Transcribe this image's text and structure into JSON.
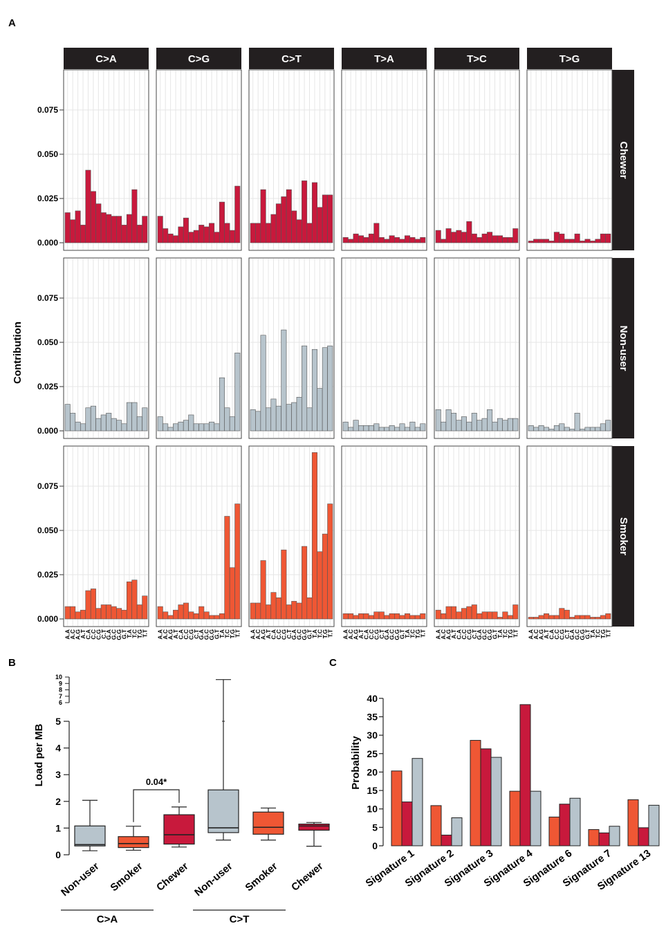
{
  "panel_labels": {
    "a": "A",
    "b": "B",
    "c": "C"
  },
  "colors": {
    "chewer": "#c8193c",
    "nonuser": "#b7c4cc",
    "smoker": "#ef5734",
    "strip": "#231f20",
    "grid": "#e6e6e6"
  },
  "chart_data": [
    {
      "id": "A",
      "type": "bar",
      "title": "",
      "ylabel": "Contribution",
      "ylim": [
        0,
        0.1
      ],
      "yticks": [
        "0.000",
        "0.025",
        "0.050",
        "0.075"
      ],
      "mutation_types": [
        "C>A",
        "C>G",
        "C>T",
        "T>A",
        "T>C",
        "T>G"
      ],
      "contexts": [
        "A.A",
        "A.C",
        "A.G",
        "A.T",
        "C.A",
        "C.C",
        "C.G",
        "C.T",
        "G.A",
        "G.C",
        "G.G",
        "G.T",
        "T.A",
        "T.C",
        "T.G",
        "T.T"
      ],
      "series": [
        {
          "name": "Chewer",
          "color": "#c8193c",
          "values": [
            [
              0.017,
              0.013,
              0.018,
              0.01,
              0.041,
              0.029,
              0.022,
              0.017,
              0.016,
              0.015,
              0.015,
              0.01,
              0.016,
              0.03,
              0.01,
              0.015
            ],
            [
              0.015,
              0.008,
              0.005,
              0.004,
              0.009,
              0.014,
              0.006,
              0.007,
              0.01,
              0.009,
              0.011,
              0.006,
              0.023,
              0.011,
              0.007,
              0.032
            ],
            [
              0.011,
              0.011,
              0.03,
              0.011,
              0.016,
              0.022,
              0.026,
              0.03,
              0.018,
              0.013,
              0.035,
              0.011,
              0.034,
              0.02,
              0.027,
              0.027
            ],
            [
              0.003,
              0.002,
              0.005,
              0.004,
              0.003,
              0.005,
              0.011,
              0.003,
              0.002,
              0.004,
              0.003,
              0.002,
              0.004,
              0.003,
              0.002,
              0.003
            ],
            [
              0.007,
              0.002,
              0.008,
              0.006,
              0.007,
              0.006,
              0.012,
              0.005,
              0.003,
              0.005,
              0.006,
              0.004,
              0.004,
              0.003,
              0.003,
              0.008
            ],
            [
              0.001,
              0.002,
              0.002,
              0.002,
              0.001,
              0.006,
              0.005,
              0.002,
              0.002,
              0.005,
              0.001,
              0.002,
              0.001,
              0.002,
              0.005,
              0.005
            ]
          ]
        },
        {
          "name": "Non-user",
          "color": "#b7c4cc",
          "values": [
            [
              0.015,
              0.01,
              0.005,
              0.004,
              0.013,
              0.014,
              0.007,
              0.009,
              0.01,
              0.007,
              0.006,
              0.004,
              0.016,
              0.016,
              0.008,
              0.013
            ],
            [
              0.008,
              0.004,
              0.002,
              0.004,
              0.005,
              0.006,
              0.009,
              0.004,
              0.004,
              0.004,
              0.005,
              0.004,
              0.03,
              0.013,
              0.008,
              0.044
            ],
            [
              0.012,
              0.011,
              0.054,
              0.013,
              0.018,
              0.014,
              0.057,
              0.015,
              0.016,
              0.019,
              0.048,
              0.013,
              0.046,
              0.024,
              0.047,
              0.048
            ],
            [
              0.005,
              0.002,
              0.006,
              0.003,
              0.003,
              0.003,
              0.004,
              0.002,
              0.002,
              0.003,
              0.002,
              0.004,
              0.002,
              0.005,
              0.002,
              0.004
            ],
            [
              0.012,
              0.005,
              0.012,
              0.01,
              0.006,
              0.008,
              0.005,
              0.01,
              0.006,
              0.007,
              0.012,
              0.005,
              0.007,
              0.006,
              0.007,
              0.007
            ],
            [
              0.003,
              0.002,
              0.003,
              0.002,
              0.001,
              0.003,
              0.004,
              0.002,
              0.001,
              0.01,
              0.001,
              0.002,
              0.002,
              0.002,
              0.004,
              0.006
            ]
          ]
        },
        {
          "name": "Smoker",
          "color": "#ef5734",
          "values": [
            [
              0.007,
              0.007,
              0.004,
              0.005,
              0.016,
              0.017,
              0.006,
              0.008,
              0.008,
              0.007,
              0.006,
              0.005,
              0.021,
              0.022,
              0.008,
              0.013
            ],
            [
              0.007,
              0.004,
              0.002,
              0.005,
              0.008,
              0.009,
              0.004,
              0.003,
              0.007,
              0.004,
              0.002,
              0.002,
              0.003,
              0.058,
              0.029,
              0.065
            ],
            [
              0.009,
              0.009,
              0.033,
              0.008,
              0.015,
              0.012,
              0.039,
              0.008,
              0.01,
              0.009,
              0.041,
              0.012,
              0.094,
              0.038,
              0.048,
              0.065
            ],
            [
              0.003,
              0.003,
              0.002,
              0.003,
              0.003,
              0.002,
              0.004,
              0.004,
              0.002,
              0.003,
              0.003,
              0.002,
              0.003,
              0.002,
              0.002,
              0.003
            ],
            [
              0.005,
              0.003,
              0.007,
              0.007,
              0.004,
              0.006,
              0.007,
              0.008,
              0.003,
              0.004,
              0.004,
              0.004,
              0.001,
              0.004,
              0.002,
              0.008
            ],
            [
              0.001,
              0.001,
              0.002,
              0.003,
              0.002,
              0.002,
              0.006,
              0.005,
              0.001,
              0.002,
              0.002,
              0.002,
              0.001,
              0.001,
              0.002,
              0.003
            ]
          ]
        }
      ]
    },
    {
      "id": "B",
      "type": "box",
      "ylabel": "Load per MB",
      "yticks_main": [
        "0",
        "1",
        "2",
        "3",
        "4",
        "5"
      ],
      "yticks_upper": [
        "6",
        "7",
        "8",
        "9",
        "10"
      ],
      "groups": [
        "C>A",
        "C>T"
      ],
      "categories": [
        "Non-user",
        "Smoker",
        "Chewer",
        "Non-user",
        "Smoker",
        "Chewer"
      ],
      "boxes": [
        {
          "group": "C>A",
          "name": "Non-user",
          "color": "#b7c4cc",
          "min": 0.15,
          "q1": 0.33,
          "median": 0.38,
          "q3": 1.08,
          "max": 2.04
        },
        {
          "group": "C>A",
          "name": "Smoker",
          "color": "#ef5734",
          "min": 0.17,
          "q1": 0.27,
          "median": 0.42,
          "q3": 0.68,
          "max": 1.07
        },
        {
          "group": "C>A",
          "name": "Chewer",
          "color": "#c8193c",
          "min": 0.29,
          "q1": 0.4,
          "median": 0.75,
          "q3": 1.5,
          "max": 1.79
        },
        {
          "group": "C>T",
          "name": "Non-user",
          "color": "#b7c4cc",
          "min": 0.55,
          "q1": 0.83,
          "median": 1.01,
          "q3": 2.43,
          "max": 9.6,
          "whisker_break_value": 5
        },
        {
          "group": "C>T",
          "name": "Smoker",
          "color": "#ef5734",
          "min": 0.55,
          "q1": 0.77,
          "median": 1.03,
          "q3": 1.6,
          "max": 1.75
        },
        {
          "group": "C>T",
          "name": "Chewer",
          "color": "#c8193c",
          "min": 0.32,
          "q1": 0.92,
          "median": 1.08,
          "q3": 1.15,
          "max": 1.21
        }
      ],
      "annotation": {
        "text": "0.04*",
        "from": 1,
        "to": 2,
        "y": 1.6
      }
    },
    {
      "id": "C",
      "type": "bar",
      "ylabel": "Probability",
      "ylim": [
        0,
        40
      ],
      "yticks": [
        "0",
        "5",
        "10",
        "15",
        "20",
        "25",
        "30",
        "35",
        "40"
      ],
      "categories": [
        "Signature 1",
        "Signature 2",
        "Signature 3",
        "Signature 4",
        "Signature 6",
        "Signature 7",
        "Signature 13"
      ],
      "series": [
        {
          "name": "Smoker",
          "color": "#ef5734",
          "values": [
            20.3,
            10.9,
            28.6,
            14.8,
            7.8,
            4.4,
            12.5
          ]
        },
        {
          "name": "Chewer",
          "color": "#c8193c",
          "values": [
            11.9,
            2.9,
            26.3,
            38.3,
            11.3,
            3.5,
            4.9
          ]
        },
        {
          "name": "Non-user",
          "color": "#b7c4cc",
          "values": [
            23.7,
            7.6,
            24.0,
            14.8,
            12.9,
            5.3,
            11.0
          ]
        }
      ]
    }
  ]
}
